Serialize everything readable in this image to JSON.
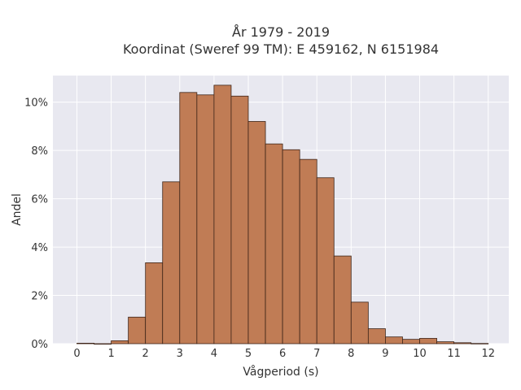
{
  "chart_data": {
    "type": "bar",
    "title": "År 1979 - 2019",
    "subtitle": "Koordinat (Sweref 99 TM): E 459162, N 6151984",
    "xlabel": "Vågperiod (s)",
    "ylabel": "Andel",
    "xlim": [
      -0.7,
      12.6
    ],
    "ylim": [
      0,
      11.1
    ],
    "x_ticks": [
      0,
      1,
      2,
      3,
      4,
      5,
      6,
      7,
      8,
      9,
      10,
      11,
      12
    ],
    "y_ticks": [
      0,
      2,
      4,
      6,
      8,
      10
    ],
    "y_tick_labels": [
      "0%",
      "2%",
      "4%",
      "6%",
      "8%",
      "10%"
    ],
    "bin_width": 0.5,
    "bin_starts": [
      0,
      0.5,
      1,
      1.5,
      2,
      2.5,
      3,
      3.5,
      4,
      4.5,
      5,
      5.5,
      6,
      6.5,
      7,
      7.5,
      8,
      8.5,
      9,
      9.5,
      10,
      10.5,
      11,
      11.5
    ],
    "values": [
      0.02,
      0.0,
      0.12,
      1.1,
      3.35,
      6.7,
      10.4,
      10.3,
      10.7,
      10.25,
      9.2,
      8.27,
      8.03,
      7.63,
      6.87,
      3.63,
      1.72,
      0.62,
      0.28,
      0.18,
      0.22,
      0.08,
      0.04,
      0.01
    ],
    "grid": true,
    "colors": {
      "bar_fill": "#c07c55",
      "bar_edge": "#3d2418",
      "plot_bg": "#e8e8f0",
      "grid": "#ffffff"
    }
  }
}
